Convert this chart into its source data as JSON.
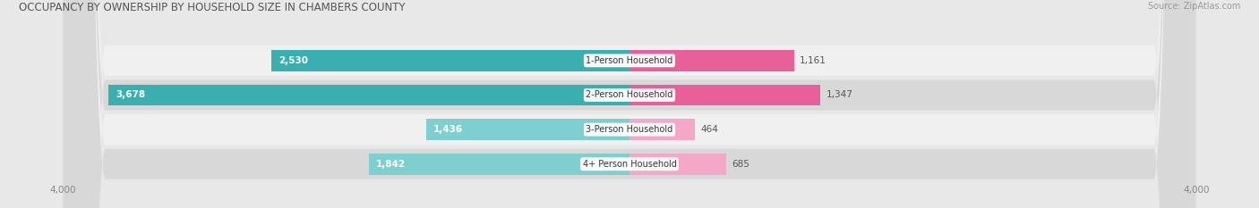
{
  "title": "OCCUPANCY BY OWNERSHIP BY HOUSEHOLD SIZE IN CHAMBERS COUNTY",
  "source": "Source: ZipAtlas.com",
  "categories": [
    "1-Person Household",
    "2-Person Household",
    "3-Person Household",
    "4+ Person Household"
  ],
  "owner_values": [
    2530,
    3678,
    1436,
    1842
  ],
  "renter_values": [
    1161,
    1347,
    464,
    685
  ],
  "owner_color_dark": "#3AAFB0",
  "owner_color_light": "#7ECFCF",
  "renter_color_dark": "#E8609A",
  "renter_color_light": "#F4A8C8",
  "axis_max": 4000,
  "background_color": "#e8e8e8",
  "row_color_dark": "#d8d8d8",
  "row_color_light": "#f0f0f0",
  "bar_height": 0.62,
  "label_fontsize": 7.5,
  "title_fontsize": 8.5,
  "legend_fontsize": 7.5,
  "source_fontsize": 7.0,
  "axis_label_fontsize": 7.5
}
